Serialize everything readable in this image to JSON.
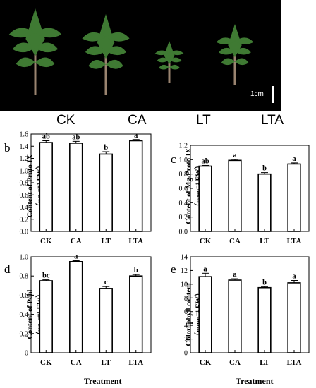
{
  "panels": {
    "a": "a",
    "b": "b",
    "c": "c",
    "d": "d",
    "e": "e"
  },
  "photo": {
    "treatments": [
      "CK",
      "CA",
      "LT",
      "LTA"
    ],
    "scale_label": "1cm",
    "background": "#000000",
    "leaf_color": "#3f7a33",
    "stem_color": "#9a8470"
  },
  "x_title": "Treatment",
  "chart_data": [
    {
      "type": "bar",
      "panel": "b",
      "categories": [
        "CK",
        "CA",
        "LT",
        "LTA"
      ],
      "values": [
        1.46,
        1.45,
        1.27,
        1.49
      ],
      "errors": [
        0.03,
        0.03,
        0.04,
        0.02
      ],
      "letters": [
        "ab",
        "ab",
        "b",
        "a"
      ],
      "ylabel_line1": "Content of Proto IX",
      "ylabel_line2": "（ug·g⁻¹ FW）",
      "ylim": [
        0,
        1.6
      ],
      "yticks": [
        0.0,
        0.2,
        0.4,
        0.6,
        0.8,
        1.0,
        1.2,
        1.4,
        1.6
      ],
      "tick_format": 1,
      "xlabel": ""
    },
    {
      "type": "bar",
      "panel": "c",
      "categories": [
        "CK",
        "CA",
        "LT",
        "LTA"
      ],
      "values": [
        0.91,
        0.99,
        0.8,
        0.94
      ],
      "errors": [
        0.01,
        0.015,
        0.02,
        0.015
      ],
      "letters": [
        "ab",
        "a",
        "b",
        "a"
      ],
      "ylabel_line1": "Content of Mg-Proto IX",
      "ylabel_line2": "（ug·g⁻¹ FW）",
      "ylim": [
        0,
        1.2
      ],
      "yticks": [
        0.0,
        0.2,
        0.4,
        0.6,
        0.8,
        1.0,
        1.2
      ],
      "tick_format": 1,
      "xlabel": ""
    },
    {
      "type": "bar",
      "panel": "d",
      "categories": [
        "CK",
        "CA",
        "LT",
        "LTA"
      ],
      "values": [
        0.75,
        0.95,
        0.67,
        0.8
      ],
      "errors": [
        0.01,
        0.01,
        0.02,
        0.015
      ],
      "letters": [
        "bc",
        "a",
        "c",
        "b"
      ],
      "ylabel_line1": "Content of Pchl",
      "ylabel_line2": "（ug·g⁻¹ FW）",
      "ylim": [
        0,
        1.0
      ],
      "yticks": [
        0,
        0.2,
        0.4,
        0.6,
        0.8,
        1.0
      ],
      "tick_labels": [
        "0",
        "0.2",
        "0.4",
        "0.6",
        "0.8",
        "1.0"
      ],
      "xlabel": "Treatment"
    },
    {
      "type": "bar",
      "panel": "e",
      "categories": [
        "CK",
        "CA",
        "LT",
        "LTA"
      ],
      "values": [
        11.1,
        10.6,
        9.5,
        10.2
      ],
      "errors": [
        0.5,
        0.2,
        0.15,
        0.35
      ],
      "letters": [
        "a",
        "a",
        "b",
        "a"
      ],
      "ylabel_line1": "Chlorophyll content",
      "ylabel_line2": "（mg·g⁻¹ FW）",
      "ylim": [
        0,
        14
      ],
      "yticks": [
        0,
        2,
        4,
        6,
        8,
        10,
        12,
        14
      ],
      "tick_labels": [
        "0",
        "2",
        "4",
        "6",
        "8",
        "10",
        "12",
        "14"
      ],
      "xlabel": "Treatment"
    }
  ]
}
